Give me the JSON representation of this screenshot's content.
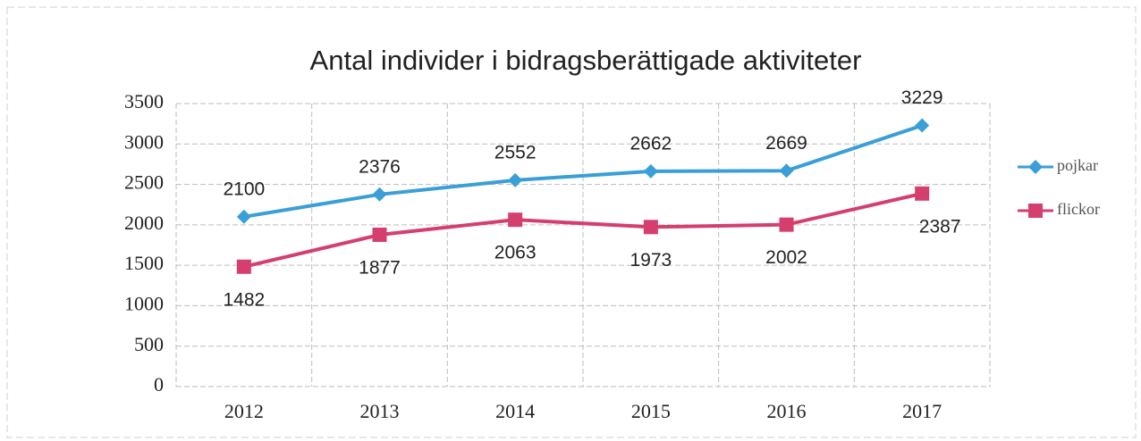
{
  "chart_data": {
    "type": "line",
    "title": "Antal individer i bidragsberättigade aktiviteter",
    "categories": [
      "2012",
      "2013",
      "2014",
      "2015",
      "2016",
      "2017"
    ],
    "series": [
      {
        "name": "pojkar",
        "color": "#3a9fd6",
        "marker": "diamond",
        "values": [
          2100,
          2376,
          2552,
          2662,
          2669,
          3229
        ]
      },
      {
        "name": "flickor",
        "color": "#d43f6e",
        "marker": "square",
        "values": [
          1482,
          1877,
          2063,
          1973,
          2002,
          2387
        ]
      }
    ],
    "ylim": [
      0,
      3500
    ],
    "yticks": [
      0,
      500,
      1000,
      1500,
      2000,
      2500,
      3000,
      3500
    ],
    "grid": true,
    "legend": "right"
  }
}
